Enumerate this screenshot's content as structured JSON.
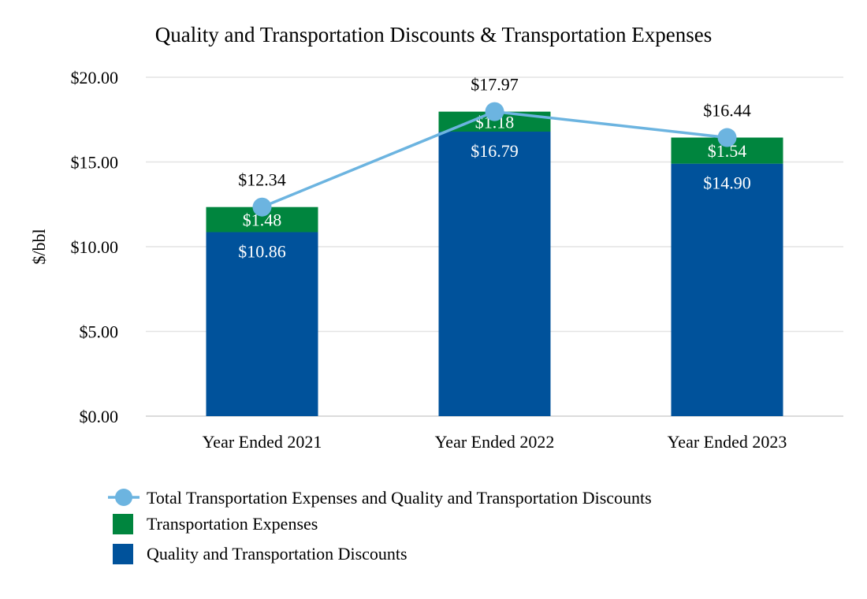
{
  "chart_data": {
    "type": "bar",
    "title": "Quality and Transportation Discounts & Transportation Expenses",
    "xlabel": "",
    "ylabel": "$/bbl",
    "ylim": [
      0,
      20
    ],
    "yticks": [
      0,
      5,
      10,
      15,
      20
    ],
    "ytick_labels": [
      "$0.00",
      "$5.00",
      "$10.00",
      "$15.00",
      "$20.00"
    ],
    "grid": true,
    "stacked": true,
    "categories": [
      "Year Ended 2021",
      "Year Ended 2022",
      "Year Ended 2023"
    ],
    "series": [
      {
        "name": "Quality and Transportation Discounts",
        "type": "bar",
        "color": "#00529b",
        "values": [
          10.86,
          16.79,
          14.9
        ],
        "labels": [
          "$10.86",
          "$16.79",
          "$14.90"
        ]
      },
      {
        "name": "Transportation Expenses",
        "type": "bar",
        "color": "#00853e",
        "values": [
          1.48,
          1.18,
          1.54
        ],
        "labels": [
          "$1.48",
          "$1.18",
          "$1.54"
        ]
      },
      {
        "name": "Total Transportation Expenses and Quality and Transportation Discounts",
        "type": "line",
        "color": "#6cb4e0",
        "values": [
          12.34,
          17.97,
          16.44
        ],
        "labels": [
          "$12.34",
          "$17.97",
          "$16.44"
        ]
      }
    ],
    "legend_position": "bottom-left",
    "legend_order": [
      2,
      1,
      0
    ]
  }
}
